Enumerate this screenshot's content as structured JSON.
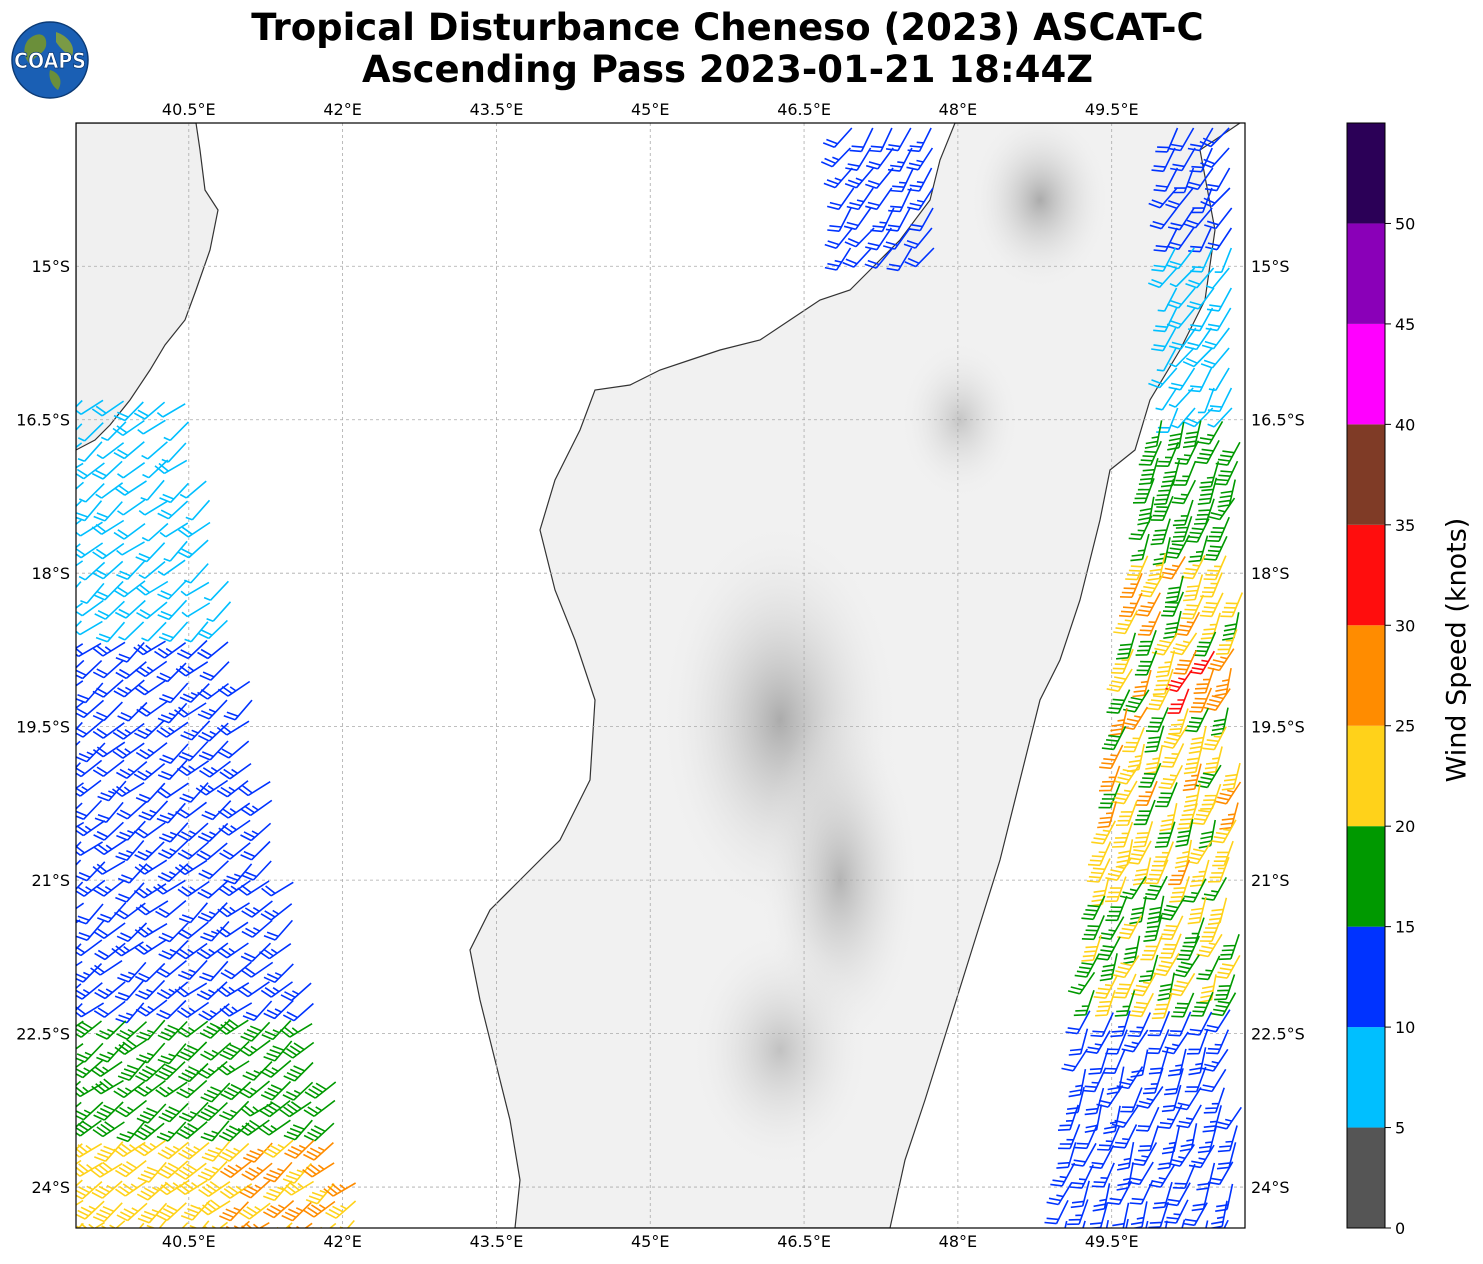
{
  "title": {
    "line1": "Tropical Disturbance Cheneso (2023) ASCAT-C",
    "line2": "Ascending Pass 2023-01-21 18:44Z"
  },
  "logo": {
    "text": "COAPS",
    "icon": "globe-icon"
  },
  "map": {
    "lon_ticks": [
      "40.5°E",
      "42°E",
      "43.5°E",
      "45°E",
      "46.5°E",
      "48°E",
      "49.5°E"
    ],
    "lat_ticks": [
      "15°S",
      "16.5°S",
      "18°S",
      "19.5°S",
      "21°S",
      "22.5°S",
      "24°S"
    ],
    "extent": {
      "lon": [
        39.4,
        50.8
      ],
      "lat": [
        -13.6,
        -24.4
      ]
    },
    "land_color": "#f2f2f2",
    "coast_color": "#333333"
  },
  "colorbar": {
    "label": "Wind Speed (knots)",
    "ticks": [
      "0",
      "5",
      "10",
      "15",
      "20",
      "25",
      "30",
      "35",
      "40",
      "45",
      "50"
    ],
    "bins": [
      {
        "from": 0,
        "to": 5,
        "color": "#555555"
      },
      {
        "from": 5,
        "to": 10,
        "color": "#00bfff"
      },
      {
        "from": 10,
        "to": 15,
        "color": "#0033ff"
      },
      {
        "from": 15,
        "to": 20,
        "color": "#009900"
      },
      {
        "from": 20,
        "to": 25,
        "color": "#ffd21a"
      },
      {
        "from": 25,
        "to": 30,
        "color": "#ff8c00"
      },
      {
        "from": 30,
        "to": 35,
        "color": "#ff0d0d"
      },
      {
        "from": 35,
        "to": 40,
        "color": "#7f3b26"
      },
      {
        "from": 40,
        "to": 45,
        "color": "#ff00ff"
      },
      {
        "from": 45,
        "to": 50,
        "color": "#8a00b8"
      },
      {
        "from": 50,
        "to": 55,
        "color": "#2b0057"
      }
    ]
  }
}
